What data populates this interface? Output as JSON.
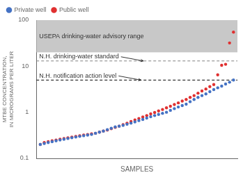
{
  "chart_data": {
    "type": "scatter",
    "xlabel": "SAMPLES",
    "ylabel": "MTBE CONCENTRATION,\nIN MICROGRAMS PER LITER",
    "log": "y",
    "ylim": [
      0.1,
      100
    ],
    "yticks": [
      0.1,
      1,
      10,
      100
    ],
    "grid": false,
    "legend": "upper left",
    "tick_labels": "y",
    "marker": "circle",
    "series": [
      {
        "name": "Private well",
        "color": "#4472c4",
        "values": [
          0.2,
          0.21,
          0.22,
          0.23,
          0.24,
          0.25,
          0.26,
          0.27,
          0.28,
          0.29,
          0.3,
          0.31,
          0.32,
          0.33,
          0.35,
          0.37,
          0.39,
          0.42,
          0.45,
          0.48,
          0.5,
          0.52,
          0.55,
          0.58,
          0.62,
          0.66,
          0.7,
          0.75,
          0.8,
          0.85,
          0.9,
          0.95,
          1.0,
          1.1,
          1.2,
          1.3,
          1.4,
          1.5,
          1.7,
          1.9,
          2.1,
          2.3,
          2.5,
          2.8,
          3.1,
          3.4,
          3.7,
          4.1,
          4.5,
          5.0
        ]
      },
      {
        "name": "Public well",
        "color": "#e03030",
        "values": [
          0.2,
          0.22,
          0.23,
          0.24,
          0.25,
          0.26,
          0.27,
          0.28,
          0.29,
          0.3,
          0.31,
          0.32,
          0.33,
          0.34,
          0.35,
          0.37,
          0.39,
          0.41,
          0.44,
          0.47,
          0.5,
          0.54,
          0.58,
          0.63,
          0.68,
          0.73,
          0.79,
          0.85,
          0.92,
          0.99,
          1.07,
          1.15,
          1.25,
          1.35,
          1.47,
          1.6,
          1.75,
          1.9,
          2.1,
          2.3,
          2.6,
          2.9,
          3.2,
          3.6,
          4.0,
          6.5,
          10.5,
          11.0,
          32.0,
          55.0
        ]
      }
    ],
    "annotations": [
      {
        "type": "band",
        "y_range": [
          20,
          100
        ],
        "text": "USEPA drinking-water advisory range",
        "color": "#c8c8c8"
      },
      {
        "type": "hline",
        "y": 13,
        "text": "N.H. drinking-water standard",
        "color": "gray",
        "line_style": "dashed"
      },
      {
        "type": "hline",
        "y": 5,
        "text": "N.H. notification action level",
        "color": "black",
        "line_style": "dashed"
      }
    ]
  }
}
